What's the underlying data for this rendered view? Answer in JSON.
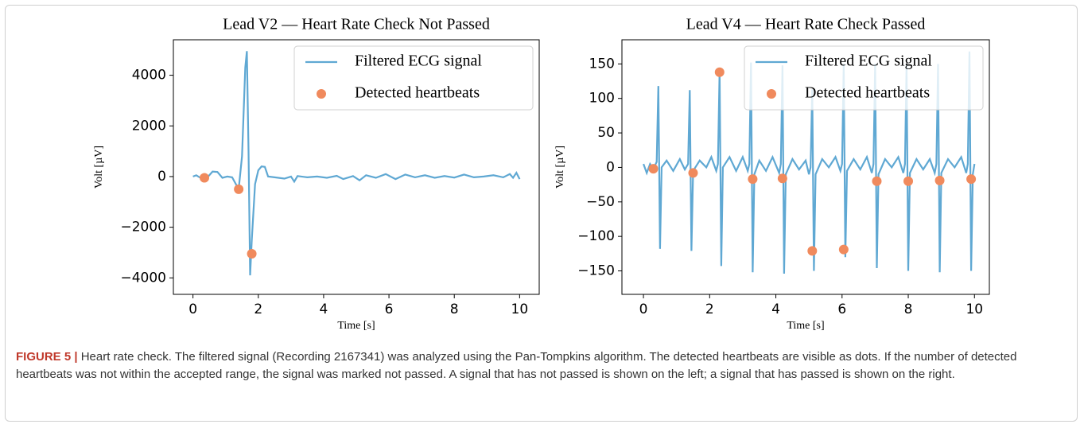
{
  "chart_data": [
    {
      "type": "line",
      "title": "Lead V2 — Heart Rate Check Not Passed",
      "xlabel": "Time [s]",
      "ylabel": "Volt [µV]",
      "xlim": [
        -0.6,
        10.6
      ],
      "ylim": [
        -4650,
        5400
      ],
      "xticks": [
        0,
        2,
        4,
        6,
        8,
        10
      ],
      "yticks": [
        {
          "value": -4000,
          "label": "−4000"
        },
        {
          "value": -2000,
          "label": "−2000"
        },
        0,
        2000,
        4000
      ],
      "legend": "upper right",
      "series": [
        {
          "name": "Filtered ECG signal",
          "color": "#5fa8d3",
          "type": "line",
          "x": [
            0,
            0.1,
            0.2,
            0.3,
            0.45,
            0.6,
            0.75,
            0.9,
            1.05,
            1.2,
            1.4,
            1.5,
            1.6,
            1.65,
            1.7,
            1.75,
            1.8,
            1.9,
            2.0,
            2.1,
            2.2,
            2.3,
            2.5,
            2.8,
            3.0,
            3.1,
            3.2,
            3.5,
            3.8,
            4.1,
            4.4,
            4.6,
            4.9,
            5.1,
            5.3,
            5.6,
            5.9,
            6.2,
            6.5,
            6.8,
            7.1,
            7.4,
            7.7,
            8.0,
            8.3,
            8.6,
            8.9,
            9.2,
            9.5,
            9.7,
            9.8,
            9.9,
            10.0
          ],
          "values": [
            0,
            50,
            -30,
            -60,
            -20,
            200,
            180,
            -50,
            0,
            -30,
            -500,
            800,
            4300,
            4950,
            1000,
            -3900,
            -2500,
            -300,
            250,
            400,
            380,
            0,
            -30,
            -80,
            0,
            -200,
            20,
            -30,
            0,
            -50,
            30,
            -100,
            20,
            -150,
            50,
            -50,
            100,
            -100,
            80,
            -30,
            50,
            -50,
            20,
            -40,
            80,
            -30,
            0,
            50,
            -30,
            100,
            -50,
            150,
            -100
          ]
        },
        {
          "name": "Detected heartbeats",
          "color": "#f08a5d",
          "type": "scatter",
          "x": [
            0.35,
            1.4,
            1.8
          ],
          "values": [
            -50,
            -500,
            -3050
          ]
        }
      ]
    },
    {
      "type": "line",
      "title": "Lead V4 — Heart Rate Check Passed",
      "xlabel": "Time [s]",
      "ylabel": "Volt [µV]",
      "xlim": [
        -0.65,
        10.45
      ],
      "ylim": [
        -184,
        185
      ],
      "xticks": [
        0,
        2,
        4,
        6,
        8,
        10
      ],
      "yticks": [
        {
          "value": -150,
          "label": "−150"
        },
        {
          "value": -100,
          "label": "−100"
        },
        {
          "value": -50,
          "label": "−50"
        },
        0,
        50,
        100,
        150
      ],
      "legend": "upper right",
      "series": [
        {
          "name": "Filtered ECG signal",
          "color": "#5fa8d3",
          "type": "line",
          "x": [
            0.0,
            0.1,
            0.2,
            0.3,
            0.4,
            0.45,
            0.5,
            0.55,
            0.7,
            0.9,
            1.1,
            1.25,
            1.35,
            1.4,
            1.45,
            1.5,
            1.7,
            1.9,
            2.05,
            2.2,
            2.25,
            2.3,
            2.35,
            2.4,
            2.6,
            2.8,
            3.0,
            3.15,
            3.2,
            3.25,
            3.3,
            3.35,
            3.5,
            3.7,
            3.9,
            4.1,
            4.15,
            4.2,
            4.25,
            4.3,
            4.5,
            4.7,
            4.9,
            5.0,
            5.05,
            5.1,
            5.15,
            5.2,
            5.4,
            5.6,
            5.8,
            5.95,
            6.0,
            6.05,
            6.1,
            6.15,
            6.35,
            6.55,
            6.75,
            6.9,
            6.95,
            7.0,
            7.05,
            7.1,
            7.3,
            7.5,
            7.7,
            7.85,
            7.9,
            7.95,
            8.0,
            8.05,
            8.25,
            8.45,
            8.65,
            8.8,
            8.85,
            8.9,
            8.95,
            9.0,
            9.2,
            9.4,
            9.6,
            9.75,
            9.8,
            9.85,
            9.9,
            9.95,
            10.0
          ],
          "values": [
            5,
            -8,
            5,
            -2,
            8,
            118,
            -118,
            0,
            10,
            -5,
            12,
            -3,
            5,
            112,
            -121,
            -5,
            10,
            0,
            15,
            -5,
            5,
            140,
            -143,
            0,
            15,
            -5,
            15,
            -5,
            5,
            152,
            -152,
            -10,
            10,
            -5,
            15,
            -8,
            5,
            148,
            -154,
            -10,
            12,
            -3,
            10,
            -10,
            0,
            113,
            -150,
            -10,
            12,
            0,
            15,
            -5,
            5,
            150,
            -130,
            -5,
            12,
            -3,
            15,
            -8,
            5,
            150,
            -146,
            -10,
            12,
            0,
            15,
            -8,
            5,
            150,
            -150,
            -8,
            12,
            -3,
            12,
            -8,
            5,
            150,
            -152,
            -8,
            12,
            0,
            15,
            -8,
            5,
            168,
            -150,
            -10,
            5
          ]
        },
        {
          "name": "Detected heartbeats",
          "color": "#f08a5d",
          "type": "scatter",
          "x": [
            0.3,
            1.5,
            2.3,
            3.3,
            4.2,
            5.1,
            6.05,
            7.05,
            8.0,
            8.95,
            9.9
          ],
          "values": [
            -2,
            -8,
            138,
            -17,
            -16,
            -121,
            -119,
            -20,
            -20,
            -19,
            -17
          ]
        }
      ]
    }
  ],
  "caption": {
    "label": "FIGURE 5 |",
    "text": "Heart rate check. The filtered signal (Recording 2167341) was analyzed using the Pan-Tompkins algorithm. The detected heartbeats are visible as dots. If the number of detected heartbeats was not within the accepted range, the signal was marked not passed. A signal that has not passed is shown on the left; a signal that has passed is shown on the right."
  }
}
